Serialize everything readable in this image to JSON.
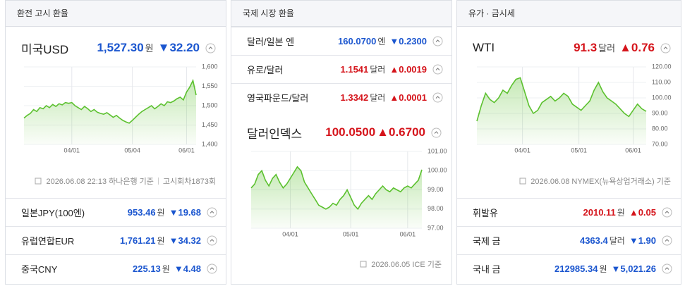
{
  "panels": [
    {
      "header": "환전 고시 환율",
      "main": {
        "name": "미국USD",
        "price": "1,527.30",
        "unit": "원",
        "change": "▼32.20",
        "trend": "down"
      },
      "footer": [
        "2026.06.08 22:13 하나은행 기준",
        "고시회차1873회"
      ],
      "rows": [
        {
          "name": "일본JPY(100엔)",
          "price": "953.46",
          "unit": "원",
          "change": "▼19.68",
          "trend": "down"
        },
        {
          "name": "유럽연합EUR",
          "price": "1,761.21",
          "unit": "원",
          "change": "▼34.32",
          "trend": "down"
        },
        {
          "name": "중국CNY",
          "price": "225.13",
          "unit": "원",
          "change": "▼4.48",
          "trend": "down"
        }
      ]
    },
    {
      "header": "국제 시장 환율",
      "rows": [
        {
          "name": "달러/일본 엔",
          "price": "160.0700",
          "unit": "엔",
          "change": "▼0.2300",
          "trend": "down"
        },
        {
          "name": "유로/달러",
          "price": "1.1541",
          "unit": "달러",
          "change": "▲0.0019",
          "trend": "up"
        },
        {
          "name": "영국파운드/달러",
          "price": "1.3342",
          "unit": "달러",
          "change": "▲0.0001",
          "trend": "up"
        }
      ],
      "main": {
        "name": "달러인덱스",
        "price": "100.0500",
        "change": "▲0.6700",
        "trend": "up"
      },
      "footer": [
        "2026.06.05 ICE 기준"
      ]
    },
    {
      "header": "유가 · 금시세",
      "main": {
        "name": "WTI",
        "price": "91.3",
        "unit": "달러",
        "change": "▲0.76",
        "trend": "up"
      },
      "footer": [
        "2026.06.08 NYMEX(뉴욕상업거래소) 기준"
      ],
      "rows": [
        {
          "name": "휘발유",
          "price": "2010.11",
          "unit": "원",
          "change": "▲0.05",
          "trend": "up"
        },
        {
          "name": "국제 금",
          "price": "4363.4",
          "unit": "달러",
          "change": "▼1.90",
          "trend": "down"
        },
        {
          "name": "국내 금",
          "price": "212985.34",
          "unit": "원",
          "change": "▼5,021.26",
          "trend": "down"
        }
      ]
    }
  ],
  "chart_data": [
    {
      "type": "line",
      "color": "#5cc12f",
      "grid": true,
      "values": [
        1468,
        1475,
        1480,
        1490,
        1485,
        1495,
        1492,
        1500,
        1495,
        1503,
        1498,
        1505,
        1502,
        1508,
        1506,
        1508,
        1500,
        1495,
        1490,
        1498,
        1492,
        1485,
        1490,
        1483,
        1480,
        1478,
        1482,
        1476,
        1470,
        1475,
        1468,
        1462,
        1458,
        1455,
        1462,
        1470,
        1478,
        1485,
        1490,
        1495,
        1500,
        1492,
        1498,
        1505,
        1500,
        1510,
        1508,
        1512,
        1518,
        1522,
        1515,
        1535,
        1548,
        1565,
        1527.3
      ],
      "xlim": [
        0,
        54
      ],
      "xticks": [
        {
          "value": 15,
          "label": "04/01"
        },
        {
          "value": 34,
          "label": "05/04"
        },
        {
          "value": 51,
          "label": "06/01"
        }
      ],
      "ylim": [
        1400,
        1600
      ],
      "yticks": [
        {
          "value": 1400,
          "label": "1,400"
        },
        {
          "value": 1450,
          "label": "1,450"
        },
        {
          "value": 1500,
          "label": "1,500"
        },
        {
          "value": 1550,
          "label": "1,550"
        },
        {
          "value": 1600,
          "label": "1,600"
        }
      ]
    },
    {
      "type": "line",
      "color": "#5cc12f",
      "grid": true,
      "values": [
        99.1,
        99.3,
        99.8,
        100.0,
        99.5,
        99.2,
        99.6,
        99.8,
        99.4,
        99.1,
        99.3,
        99.6,
        99.9,
        100.2,
        100.0,
        99.4,
        99.1,
        98.8,
        98.5,
        98.2,
        98.1,
        98.0,
        98.1,
        98.3,
        98.2,
        98.5,
        98.7,
        99.0,
        98.6,
        98.2,
        98.0,
        98.3,
        98.5,
        98.7,
        98.5,
        98.8,
        99.0,
        99.2,
        99.0,
        98.9,
        99.1,
        99.0,
        98.9,
        99.1,
        99.2,
        99.1,
        99.3,
        99.5,
        100.05
      ],
      "xlim": [
        0,
        48
      ],
      "xticks": [
        {
          "value": 11,
          "label": "04/01"
        },
        {
          "value": 28,
          "label": "05/01"
        },
        {
          "value": 44,
          "label": "06/01"
        }
      ],
      "ylim": [
        97,
        101
      ],
      "yticks": [
        {
          "value": 97,
          "label": "97.00"
        },
        {
          "value": 98,
          "label": "98.00"
        },
        {
          "value": 99,
          "label": "99.00"
        },
        {
          "value": 100,
          "label": "100.00"
        },
        {
          "value": 101,
          "label": "101.00"
        }
      ]
    },
    {
      "type": "line",
      "color": "#5cc12f",
      "grid": true,
      "values": [
        85,
        95,
        103,
        99,
        97,
        100,
        105,
        103,
        108,
        112,
        113,
        104,
        95,
        90,
        92,
        97,
        99,
        101,
        98,
        100,
        103,
        101,
        96,
        94,
        92,
        95,
        98,
        105,
        110,
        104,
        100,
        98,
        96,
        93,
        90,
        88,
        92,
        96,
        93,
        91.3
      ],
      "xlim": [
        0,
        39
      ],
      "xticks": [
        {
          "value": 10.5,
          "label": "04/01"
        },
        {
          "value": 23.5,
          "label": "05/01"
        },
        {
          "value": 36,
          "label": "06/01"
        }
      ],
      "ylim": [
        70,
        120
      ],
      "yticks": [
        {
          "value": 70,
          "label": "70.00"
        },
        {
          "value": 80,
          "label": "80.00"
        },
        {
          "value": 90,
          "label": "90.00"
        },
        {
          "value": 100,
          "label": "100.00"
        },
        {
          "value": 110,
          "label": "110.00"
        },
        {
          "value": 120,
          "label": "120.00"
        }
      ]
    }
  ]
}
